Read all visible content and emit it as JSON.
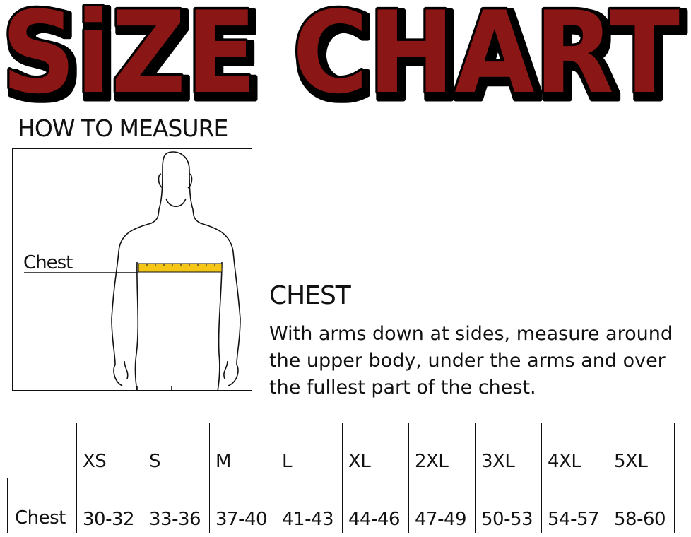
{
  "title": "SiZE CHART",
  "colors": {
    "title_fill": "#8b1414",
    "title_outline": "#000000",
    "tape": "#f5c518"
  },
  "how_to_measure": "HOW TO MEASURE",
  "figure": {
    "chest_label": "Chest",
    "icon": "body-measure-figure"
  },
  "instructions": {
    "title": "CHEST",
    "text": "With arms down at sides, measure around the upper body, under the arms and over the fullest part of the chest."
  },
  "table": {
    "sizes": [
      "XS",
      "S",
      "M",
      "L",
      "XL",
      "2XL",
      "3XL",
      "4XL",
      "5XL"
    ],
    "rows": [
      {
        "label": "Chest",
        "values": [
          "30-32",
          "33-36",
          "37-40",
          "41-43",
          "44-46",
          "47-49",
          "50-53",
          "54-57",
          "58-60"
        ]
      }
    ]
  }
}
